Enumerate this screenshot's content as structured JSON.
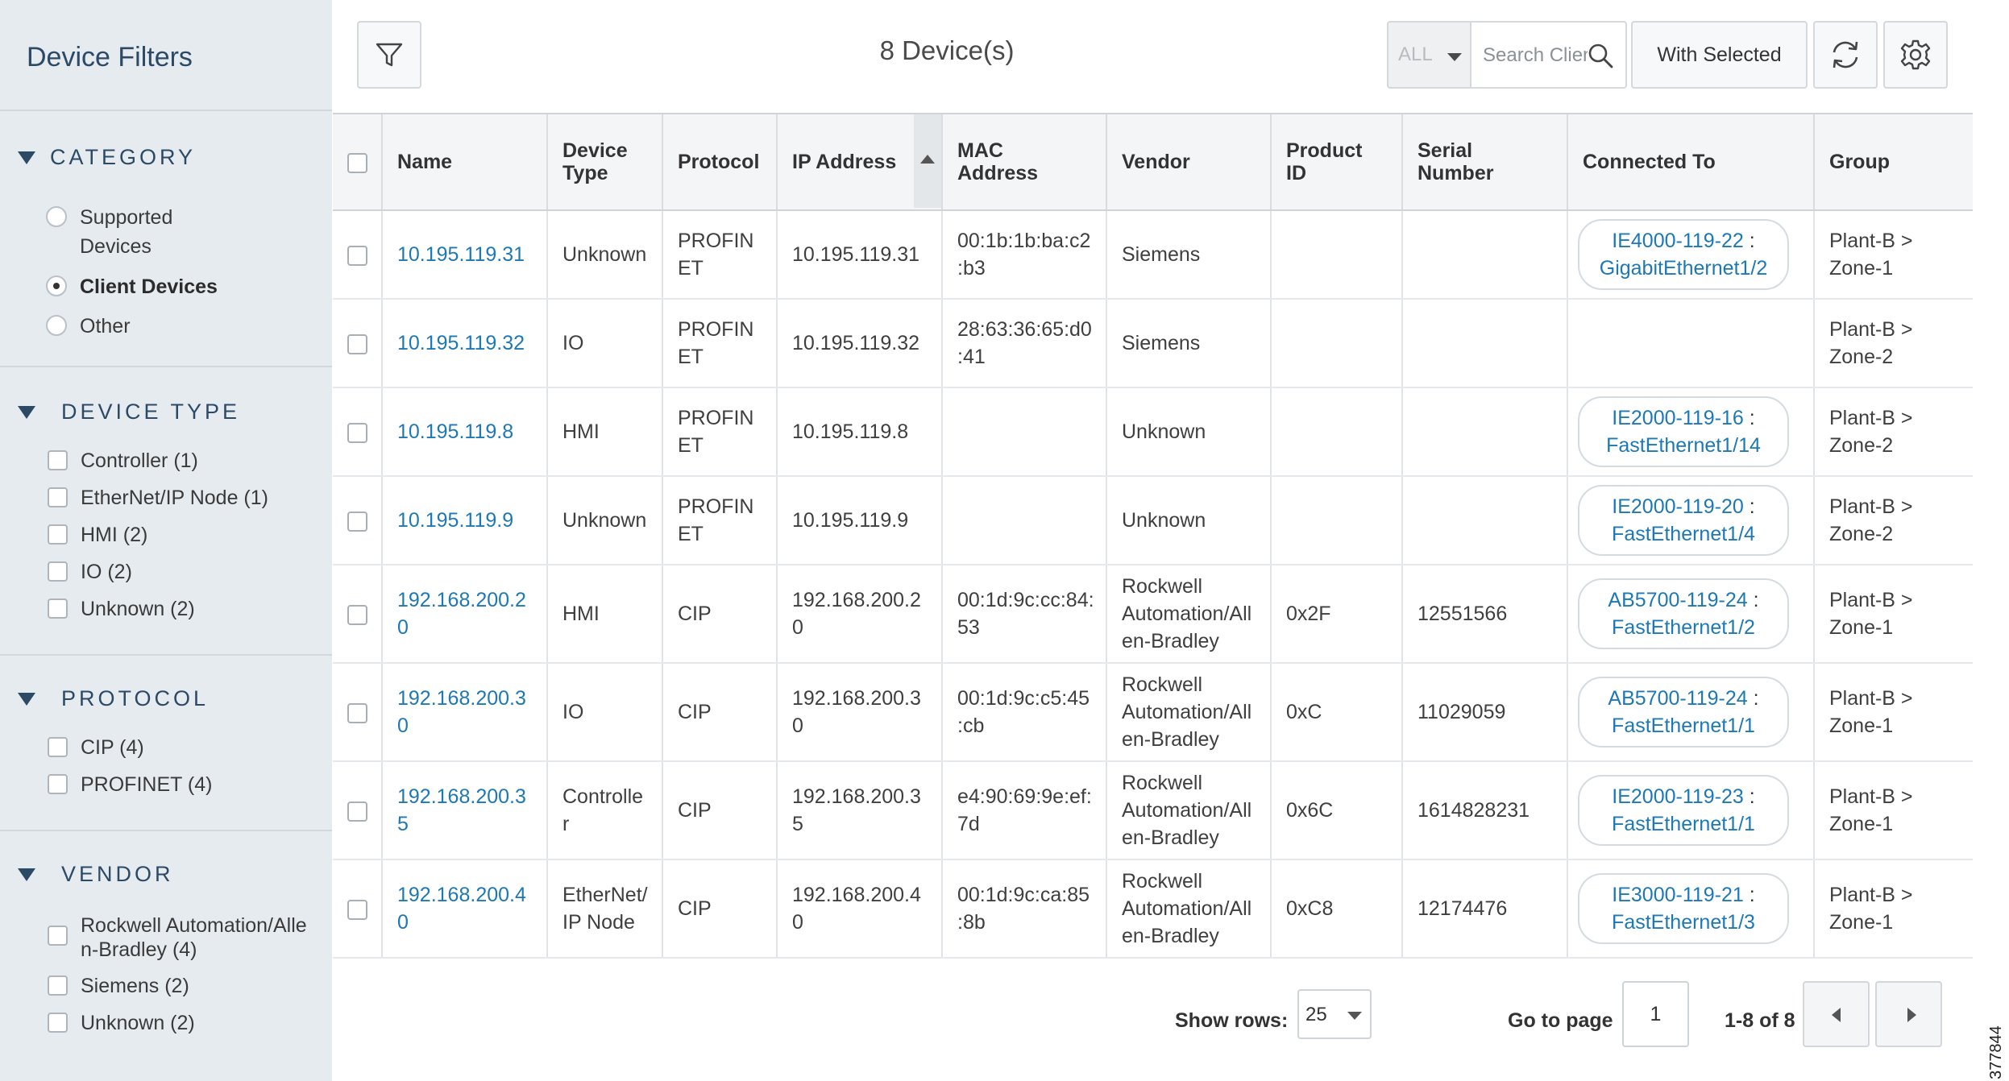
{
  "sidebar": {
    "title": "Device Filters",
    "category": {
      "heading": "CATEGORY",
      "options": [
        {
          "label_line1": "Supported",
          "label_line2": "Devices"
        },
        {
          "label": "Client Devices"
        },
        {
          "label": "Other"
        }
      ],
      "selected": "Client Devices"
    },
    "device_type": {
      "heading": "DEVICE TYPE",
      "options": [
        "Controller (1)",
        "EtherNet/IP Node (1)",
        "HMI (2)",
        "IO (2)",
        "Unknown (2)"
      ]
    },
    "protocol": {
      "heading": "PROTOCOL",
      "options": [
        "CIP (4)",
        "PROFINET (4)"
      ]
    },
    "vendor": {
      "heading": "VENDOR",
      "options": [
        {
          "line1": "Rockwell Automation/Alle",
          "line2": "n-Bradley (4)"
        },
        {
          "line1": "Siemens (2)"
        },
        {
          "line1": "Unknown (2)"
        }
      ]
    }
  },
  "toolbar": {
    "device_count": "8 Device(s)",
    "scope_value": "ALL",
    "search_placeholder": "Search Client",
    "with_selected_label": "With Selected"
  },
  "table": {
    "columns": [
      {
        "l1": "Name"
      },
      {
        "l1": "Device",
        "l2": "Type"
      },
      {
        "l1": "Protocol"
      },
      {
        "l1": "IP Address"
      },
      {
        "l1": "MAC",
        "l2": "Address"
      },
      {
        "l1": "Vendor"
      },
      {
        "l1": "Product",
        "l2": "ID"
      },
      {
        "l1": "Serial",
        "l2": "Number"
      },
      {
        "l1": "Connected To"
      },
      {
        "l1": "Group"
      }
    ],
    "rows": [
      {
        "name": [
          "10.195.119.31"
        ],
        "type": [
          "Unknown"
        ],
        "protocol": [
          "PROFIN",
          "ET"
        ],
        "ip": [
          "10.195.119.31"
        ],
        "mac": [
          "00:1b:1b:ba:c2",
          ":b3"
        ],
        "vendor": [
          "Siemens"
        ],
        "pid": [],
        "serial": [],
        "conn": {
          "device": "IE4000-119-22",
          "port": "GigabitEthernet1/2"
        },
        "group": [
          "Plant-B >",
          "Zone-1"
        ]
      },
      {
        "name": [
          "10.195.119.32"
        ],
        "type": [
          "IO"
        ],
        "protocol": [
          "PROFIN",
          "ET"
        ],
        "ip": [
          "10.195.119.32"
        ],
        "mac": [
          "28:63:36:65:d0",
          ":41"
        ],
        "vendor": [
          "Siemens"
        ],
        "pid": [],
        "serial": [],
        "conn": null,
        "group": [
          "Plant-B >",
          "Zone-2"
        ]
      },
      {
        "name": [
          "10.195.119.8"
        ],
        "type": [
          "HMI"
        ],
        "protocol": [
          "PROFIN",
          "ET"
        ],
        "ip": [
          "10.195.119.8"
        ],
        "mac": [],
        "vendor": [
          "Unknown"
        ],
        "pid": [],
        "serial": [],
        "conn": {
          "device": "IE2000-119-16",
          "port": "FastEthernet1/14"
        },
        "group": [
          "Plant-B >",
          "Zone-2"
        ]
      },
      {
        "name": [
          "10.195.119.9"
        ],
        "type": [
          "Unknown"
        ],
        "protocol": [
          "PROFIN",
          "ET"
        ],
        "ip": [
          "10.195.119.9"
        ],
        "mac": [],
        "vendor": [
          "Unknown"
        ],
        "pid": [],
        "serial": [],
        "conn": {
          "device": "IE2000-119-20",
          "port": "FastEthernet1/4"
        },
        "group": [
          "Plant-B >",
          "Zone-2"
        ]
      },
      {
        "name": [
          "192.168.200.2",
          "0"
        ],
        "type": [
          "HMI"
        ],
        "protocol": [
          "CIP"
        ],
        "ip": [
          "192.168.200.2",
          "0"
        ],
        "mac": [
          "00:1d:9c:cc:84:",
          "53"
        ],
        "vendor": [
          "Rockwell",
          "Automation/All",
          "en-Bradley"
        ],
        "pid": [
          "0x2F"
        ],
        "serial": [
          "12551566"
        ],
        "conn": {
          "device": "AB5700-119-24",
          "port": "FastEthernet1/2"
        },
        "group": [
          "Plant-B >",
          "Zone-1"
        ]
      },
      {
        "name": [
          "192.168.200.3",
          "0"
        ],
        "type": [
          "IO"
        ],
        "protocol": [
          "CIP"
        ],
        "ip": [
          "192.168.200.3",
          "0"
        ],
        "mac": [
          "00:1d:9c:c5:45",
          ":cb"
        ],
        "vendor": [
          "Rockwell",
          "Automation/All",
          "en-Bradley"
        ],
        "pid": [
          "0xC"
        ],
        "serial": [
          "11029059"
        ],
        "conn": {
          "device": "AB5700-119-24",
          "port": "FastEthernet1/1"
        },
        "group": [
          "Plant-B >",
          "Zone-1"
        ]
      },
      {
        "name": [
          "192.168.200.3",
          "5"
        ],
        "type": [
          "Controlle",
          "r"
        ],
        "protocol": [
          "CIP"
        ],
        "ip": [
          "192.168.200.3",
          "5"
        ],
        "mac": [
          "e4:90:69:9e:ef:",
          "7d"
        ],
        "vendor": [
          "Rockwell",
          "Automation/All",
          "en-Bradley"
        ],
        "pid": [
          "0x6C"
        ],
        "serial": [
          "1614828231"
        ],
        "conn": {
          "device": "IE2000-119-23",
          "port": "FastEthernet1/1"
        },
        "group": [
          "Plant-B >",
          "Zone-1"
        ]
      },
      {
        "name": [
          "192.168.200.4",
          "0"
        ],
        "type": [
          "EtherNet/",
          "IP Node"
        ],
        "protocol": [
          "CIP"
        ],
        "ip": [
          "192.168.200.4",
          "0"
        ],
        "mac": [
          "00:1d:9c:ca:85",
          ":8b"
        ],
        "vendor": [
          "Rockwell",
          "Automation/All",
          "en-Bradley"
        ],
        "pid": [
          "0xC8"
        ],
        "serial": [
          "12174476"
        ],
        "conn": {
          "device": "IE3000-119-21",
          "port": "FastEthernet1/3"
        },
        "group": [
          "Plant-B >",
          "Zone-1"
        ]
      }
    ]
  },
  "footer": {
    "show_rows_label": "Show rows:",
    "rows_value": "25",
    "go_to_page_label": "Go to page",
    "page_value": "1",
    "range_text": "1-8 of 8"
  },
  "figure_number": "377844",
  "colors": {
    "sidebar_bg": "#e6ebf0",
    "heading": "#2c4a66",
    "link": "#1d78b6"
  },
  "icons": {
    "filter": "filter-funnel-icon",
    "search": "magnifier-icon",
    "refresh": "refresh-icon",
    "settings": "gear-icon"
  }
}
